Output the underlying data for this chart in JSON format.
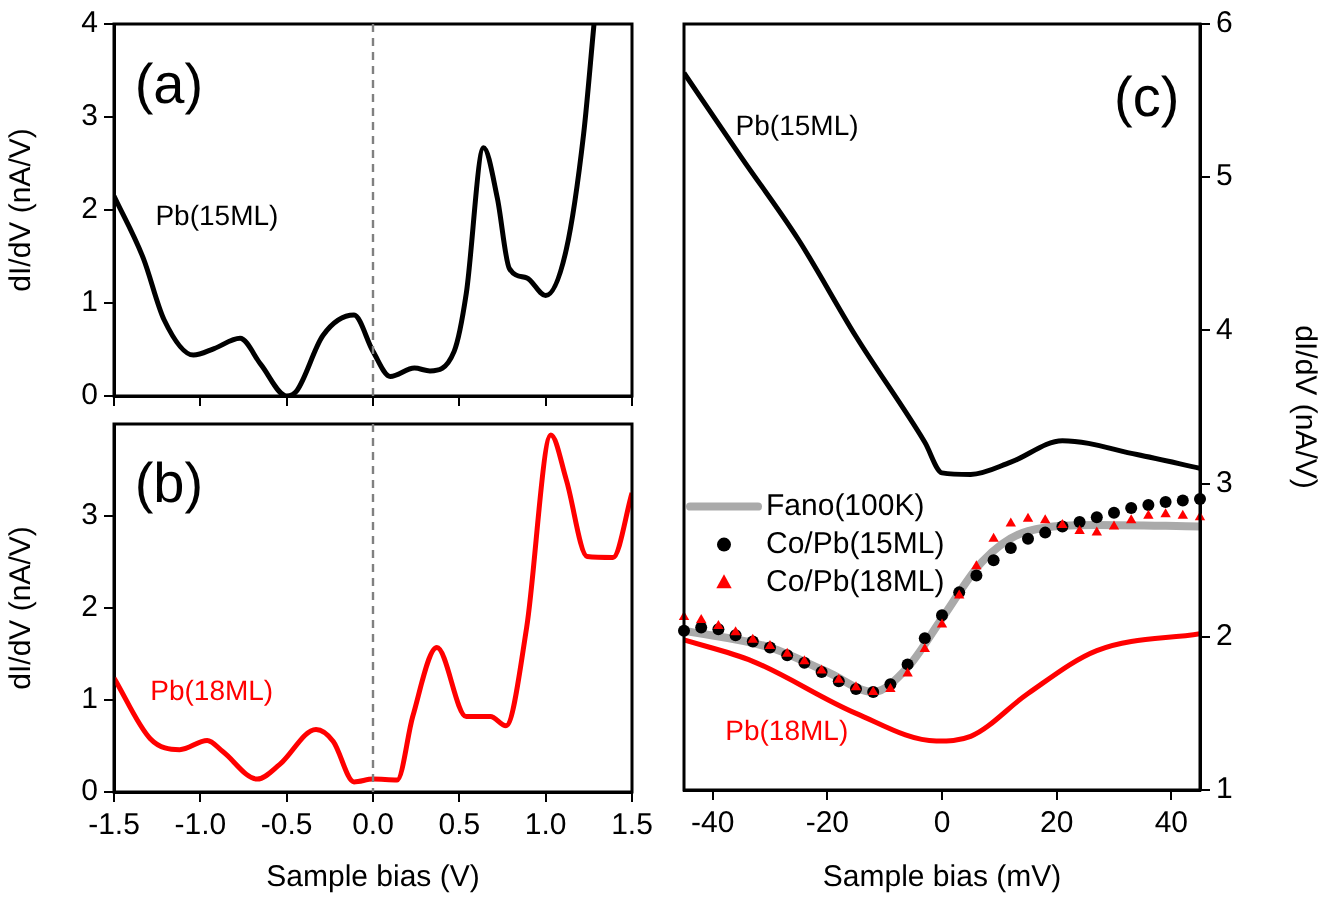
{
  "chart_data": [
    {
      "type": "line",
      "annotations": [
        "(a)"
      ],
      "ylabel": "dI/dV (nA/V)",
      "xlim": [
        -1.5,
        1.5
      ],
      "xticks": [
        -1.5,
        -1,
        -0.5,
        0,
        0.5,
        1,
        1.5
      ],
      "ylim": [
        0,
        4
      ],
      "yticks": [
        0,
        1,
        2,
        3,
        4
      ],
      "tick_labels": "y",
      "grid": false,
      "ref_lines": [
        {
          "axis": "x",
          "value": 0,
          "color": "#808080",
          "line_style": "dashed"
        }
      ],
      "series": [
        {
          "name": "Pb(15ML)",
          "color": "#000000",
          "x": [
            -1.5,
            -1.33,
            -1.21,
            -1.04,
            -0.92,
            -0.77,
            -0.65,
            -0.5,
            -0.44,
            -0.29,
            -0.11,
            0,
            0.1,
            0.24,
            0.33,
            0.47,
            0.54,
            0.64,
            0.72,
            0.79,
            0.89,
            1.0,
            1.12,
            1.22,
            1.28
          ],
          "values": [
            2.15,
            1.48,
            0.82,
            0.44,
            0.51,
            0.62,
            0.34,
            0,
            0.06,
            0.65,
            0.87,
            0.48,
            0.21,
            0.3,
            0.27,
            0.48,
            1.1,
            2.67,
            2.13,
            1.37,
            1.27,
            1.08,
            1.58,
            2.82,
            4.0
          ]
        }
      ]
    },
    {
      "type": "line",
      "annotations": [
        "(b)"
      ],
      "xlabel": "Sample bias (V)",
      "ylabel": "dI/dV (nA/V)",
      "xlim": [
        -1.5,
        1.5
      ],
      "xticks": [
        -1.5,
        {
          "value": -1,
          "label": "-1.0"
        },
        -0.5,
        {
          "value": 0,
          "label": "0.0"
        },
        0.5,
        {
          "value": 1,
          "label": "1.0"
        },
        1.5
      ],
      "ylim": [
        0,
        4
      ],
      "yticks": [
        0,
        1,
        2,
        3
      ],
      "grid": false,
      "ref_lines": [
        {
          "axis": "x",
          "value": 0,
          "color": "#808080",
          "line_style": "dashed"
        }
      ],
      "series": [
        {
          "name": "Pb(18ML)",
          "color": "#ff0000",
          "x": [
            -1.5,
            -1.29,
            -1.12,
            -0.96,
            -0.87,
            -0.67,
            -0.54,
            -0.33,
            -0.23,
            -0.11,
            0,
            0.14,
            0.23,
            0.37,
            0.54,
            0.68,
            0.77,
            0.89,
            1.03,
            1.12,
            1.24,
            1.39,
            1.5
          ],
          "values": [
            1.24,
            0.58,
            0.46,
            0.56,
            0.44,
            0.14,
            0.3,
            0.68,
            0.55,
            0.11,
            0.14,
            0.13,
            0.82,
            1.57,
            0.82,
            0.82,
            0.72,
            1.79,
            3.88,
            3.39,
            2.56,
            2.55,
            3.25
          ]
        }
      ]
    },
    {
      "type": "line",
      "annotations": [
        "(c)"
      ],
      "xlabel": "Sample bias (mV)",
      "y2label": "dI/dV (nA/V)",
      "xlim": [
        -45,
        45
      ],
      "xticks": [
        -40,
        -20,
        0,
        20,
        40
      ],
      "y2lim": [
        1,
        6
      ],
      "y2ticks": [
        1,
        2,
        3,
        4,
        5,
        6
      ],
      "grid": false,
      "legend": "left",
      "series": [
        {
          "name": "Pb(15ML)",
          "color": "#000000",
          "axis": "y2",
          "x": [
            -45,
            -35,
            -25,
            -15,
            -3,
            0,
            5,
            12,
            21,
            34,
            45
          ],
          "values": [
            5.68,
            5.13,
            4.59,
            3.96,
            3.27,
            3.07,
            3.06,
            3.14,
            3.28,
            3.19,
            3.1
          ]
        },
        {
          "name": "Pb(18ML)",
          "color": "#ff0000",
          "axis": "y2",
          "x": [
            -45,
            -33,
            -15,
            -1,
            5,
            15,
            27,
            45
          ],
          "values": [
            1.98,
            1.84,
            1.5,
            1.32,
            1.35,
            1.63,
            1.91,
            2.02
          ]
        },
        {
          "name": "Fano(100K)",
          "color": "#aaaaaa",
          "axis": "y2",
          "x": [
            -45,
            -30,
            -20,
            -12,
            -6,
            0,
            7,
            15,
            27,
            45
          ],
          "values": [
            2.04,
            1.93,
            1.77,
            1.64,
            1.8,
            2.12,
            2.49,
            2.69,
            2.73,
            2.72
          ]
        },
        {
          "name": "Co/Pb(15ML)",
          "type": "scatter",
          "marker": "circle",
          "color": "#000000",
          "axis": "y2",
          "x": [
            -45,
            -42,
            -39,
            -36,
            -33,
            -30,
            -27,
            -24,
            -21,
            -18,
            -15,
            -12,
            -9,
            -6,
            -3,
            0,
            3,
            6,
            9,
            12,
            15,
            18,
            21,
            24,
            27,
            30,
            33,
            36,
            39,
            42,
            45
          ],
          "values": [
            2.04,
            2.06,
            2.05,
            2.01,
            1.97,
            1.93,
            1.88,
            1.83,
            1.77,
            1.71,
            1.66,
            1.64,
            1.69,
            1.82,
            1.99,
            2.14,
            2.29,
            2.4,
            2.5,
            2.58,
            2.64,
            2.68,
            2.72,
            2.75,
            2.78,
            2.81,
            2.84,
            2.86,
            2.88,
            2.89,
            2.9
          ]
        },
        {
          "name": "Co/Pb(18ML)",
          "type": "scatter",
          "marker": "triangle",
          "color": "#ff0000",
          "axis": "y2",
          "x": [
            -45,
            -42,
            -39,
            -36,
            -33,
            -30,
            -27,
            -24,
            -21,
            -18,
            -15,
            -12,
            -9,
            -6,
            -3,
            0,
            3,
            6,
            9,
            12,
            15,
            18,
            21,
            24,
            27,
            30,
            33,
            36,
            39,
            42,
            45
          ],
          "values": [
            2.13,
            2.11,
            2.07,
            2.03,
            1.98,
            1.94,
            1.89,
            1.84,
            1.78,
            1.72,
            1.67,
            1.64,
            1.66,
            1.76,
            1.92,
            2.08,
            2.27,
            2.46,
            2.64,
            2.74,
            2.77,
            2.76,
            2.73,
            2.69,
            2.68,
            2.72,
            2.76,
            2.79,
            2.8,
            2.79,
            2.78
          ]
        }
      ]
    }
  ]
}
